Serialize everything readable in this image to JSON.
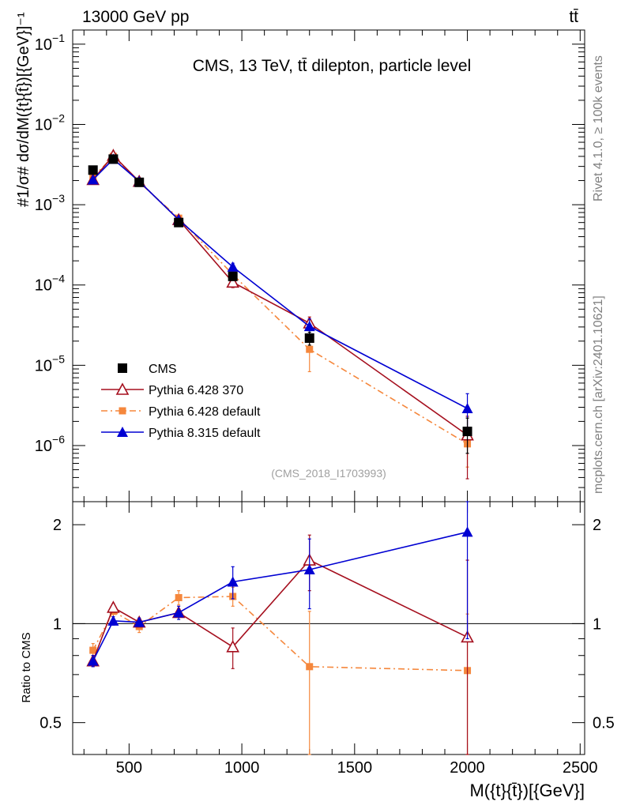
{
  "header": {
    "energy_label": "13000 GeV pp",
    "process_label": "tt̄"
  },
  "side_labels": {
    "rivet": "Rivet 4.1.0, ≥ 100k events",
    "mcplots": "mcplots.cern.ch [arXiv:2401.10621]"
  },
  "chart_data": {
    "type": "line",
    "title": "CMS, 13 TeV, tt̄ dilepton, particle level",
    "analysis_id": "(CMS_2018_I1703993)",
    "xlabel": "M({t}{t̄})[{GeV}]",
    "ylabel_main": "#1/σ# dσ/dM({t}{t̄})[{GeV}]⁻¹",
    "ylabel_ratio": "Ratio to CMS",
    "xlim": [
      250,
      2520
    ],
    "ylim_main": [
      2e-07,
      0.15
    ],
    "ylim_ratio": [
      0.4,
      2.35
    ],
    "yscale_main": "log",
    "yscale_ratio": "log",
    "x_ticks": [
      500,
      1000,
      1500,
      2000,
      2500
    ],
    "x_tick_labels": [
      "500",
      "1000",
      "1500",
      "2000",
      "2500"
    ],
    "y_ticks_main": [
      {
        "value": 1e-06,
        "base": "10",
        "exp": "−6"
      },
      {
        "value": 1e-05,
        "base": "10",
        "exp": "−5"
      },
      {
        "value": 0.0001,
        "base": "10",
        "exp": "−4"
      },
      {
        "value": 0.001,
        "base": "10",
        "exp": "−3"
      },
      {
        "value": 0.01,
        "base": "10",
        "exp": "−2"
      },
      {
        "value": 0.1,
        "base": "10",
        "exp": "−1"
      }
    ],
    "y_ticks_ratio": [
      {
        "value": 0.5,
        "label": "0.5"
      },
      {
        "value": 1,
        "label": "1"
      },
      {
        "value": 2,
        "label": "2"
      }
    ],
    "x": [
      340,
      430,
      545,
      720,
      960,
      1300,
      2000
    ],
    "series": [
      {
        "name": "CMS",
        "color": "#000000",
        "marker": "square",
        "values": [
          0.0027,
          0.0037,
          0.0019,
          0.0006,
          0.000128,
          2.18e-05,
          1.5e-06
        ],
        "errors": [
          0.0003,
          0.0002,
          0.0001,
          4e-05,
          1.2e-05,
          4e-06,
          7e-07
        ]
      },
      {
        "name": "Pythia 6.428 370",
        "color": "#a50f1e",
        "marker": "triangle-open",
        "line": "solid",
        "values": [
          0.00205,
          0.0041,
          0.00195,
          0.00065,
          0.000108,
          3.35e-05,
          1.35e-06
        ],
        "ratio": [
          0.77,
          1.12,
          1.01,
          1.08,
          0.85,
          1.56,
          0.91
        ],
        "ratio_err": [
          0.03,
          0.03,
          0.02,
          0.03,
          0.12,
          0.3,
          0.65
        ]
      },
      {
        "name": "Pythia 6.428 default",
        "color": "#f5873c",
        "marker": "square-small",
        "line": "dashdot",
        "values": [
          0.0022,
          0.004,
          0.0019,
          0.00068,
          0.000135,
          1.58e-05,
          1.05e-06
        ],
        "ratio": [
          0.83,
          1.09,
          0.98,
          1.2,
          1.21,
          0.74,
          0.72
        ],
        "ratio_err": [
          0.04,
          0.04,
          0.04,
          0.06,
          0.08,
          0.35,
          0.35
        ]
      },
      {
        "name": "Pythia 8.315 default",
        "color": "#0000d2",
        "marker": "triangle-filled",
        "line": "solid",
        "values": [
          0.00205,
          0.0037,
          0.00195,
          0.00065,
          0.000168,
          3.05e-05,
          2.9e-06
        ],
        "ratio": [
          0.77,
          1.02,
          1.01,
          1.08,
          1.34,
          1.46,
          1.9
        ],
        "ratio_err": [
          0.03,
          0.03,
          0.03,
          0.05,
          0.15,
          0.35,
          1.0
        ]
      }
    ],
    "legend_position": "bottom-left"
  }
}
